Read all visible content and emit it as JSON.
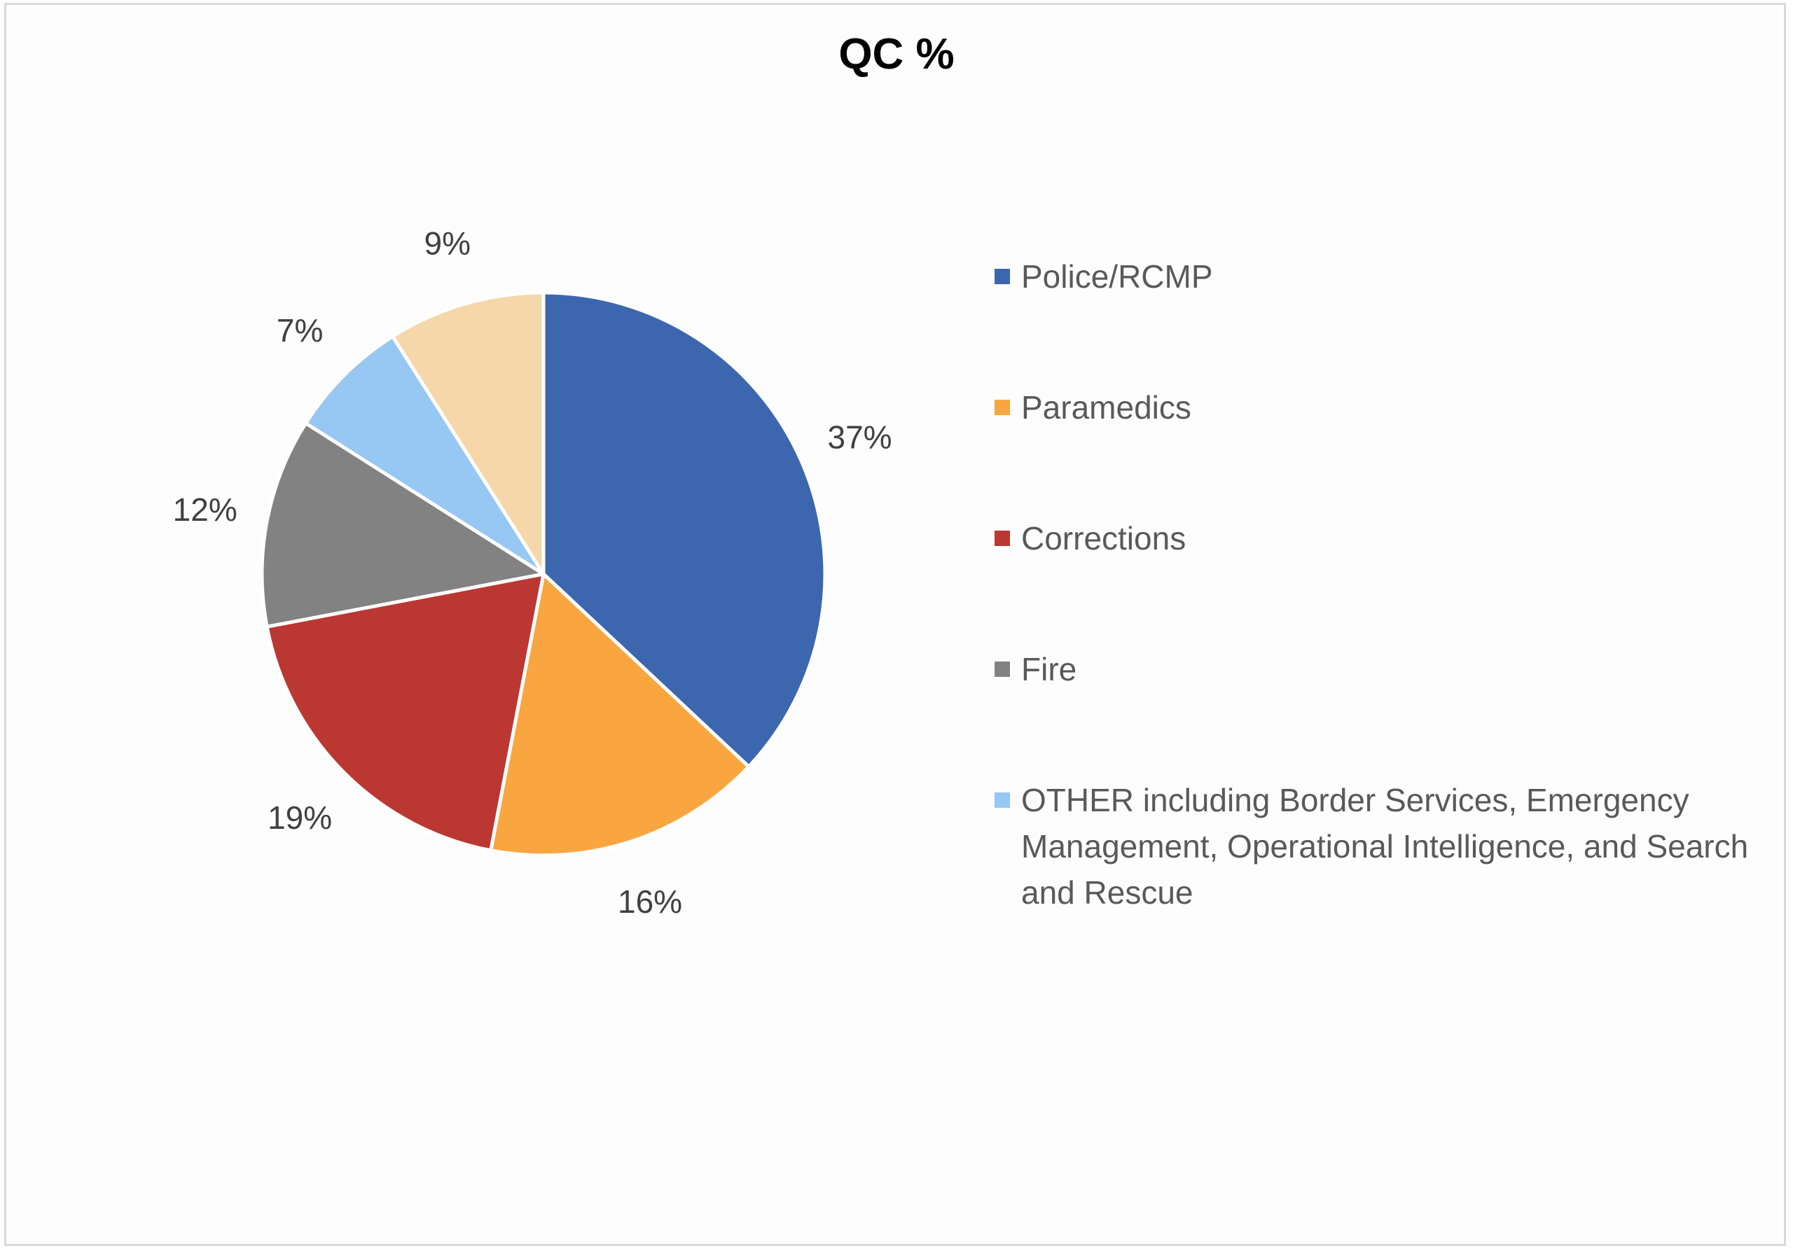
{
  "chart_data": {
    "type": "pie",
    "title": "QC %",
    "categories": [
      "Police/RCMP",
      "Paramedics",
      "Corrections",
      "Fire",
      "OTHER including Border Services, Emergency Management, Operational Intelligence, and Search and Rescue",
      ""
    ],
    "values": [
      37,
      16,
      19,
      12,
      7,
      9
    ],
    "data_labels": [
      "37%",
      "16%",
      "19%",
      "12%",
      "7%",
      "9%"
    ],
    "colors": [
      "#3c67ae",
      "#f9a640",
      "#bb3732",
      "#828282",
      "#97c7f3",
      "#f6d7a9"
    ],
    "legend": {
      "placement": "right",
      "entries": [
        {
          "label": "Police/RCMP",
          "color": "#3c67ae"
        },
        {
          "label": "Paramedics",
          "color": "#f9a640"
        },
        {
          "label": "Corrections",
          "color": "#bb3732"
        },
        {
          "label": "Fire",
          "color": "#828282"
        },
        {
          "label": "OTHER including Border Services, Emergency Management, Operational Intelligence, and Search and Rescue",
          "color": "#97c7f3"
        }
      ]
    }
  }
}
